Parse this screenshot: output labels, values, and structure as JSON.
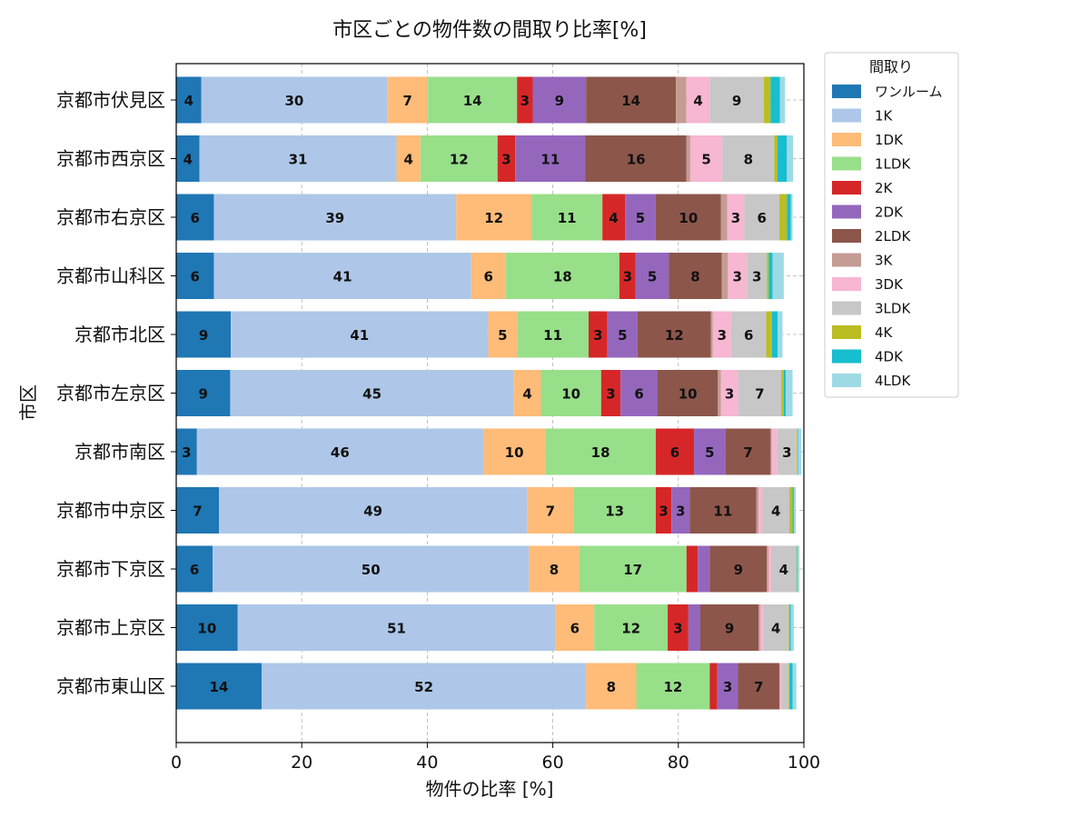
{
  "chart_data": {
    "type": "bar",
    "orientation": "horizontal",
    "stacked": true,
    "title": "市区ごとの物件数の間取り比率[%]",
    "xlabel": "物件の比率 [%]",
    "ylabel": "市区",
    "xlim": [
      0,
      100
    ],
    "xticks": [
      "0",
      "20",
      "40",
      "60",
      "80",
      "100"
    ],
    "grid": true,
    "legend": {
      "title": "間取り",
      "placement": "outside-top-right"
    },
    "categories": [
      "京都市伏見区",
      "京都市西京区",
      "京都市右京区",
      "京都市山科区",
      "京都市北区",
      "京都市左京区",
      "京都市南区",
      "京都市中京区",
      "京都市下京区",
      "京都市上京区",
      "京都市東山区"
    ],
    "series": [
      {
        "name": "ワンルーム",
        "color": "#1f77b4",
        "values": [
          4,
          3.7,
          6,
          6,
          8.7,
          8.6,
          3.3,
          6.8,
          5.8,
          9.8,
          13.6
        ]
      },
      {
        "name": "1K",
        "color": "#aec7e8",
        "values": [
          29.6,
          31.4,
          38.6,
          41,
          41,
          45.2,
          45.6,
          49.1,
          50.4,
          50.6,
          51.7
        ]
      },
      {
        "name": "1DK",
        "color": "#ffbb78",
        "values": [
          6.5,
          3.8,
          12,
          5.5,
          4.6,
          4.3,
          9.9,
          7.4,
          8,
          6.2,
          8
        ]
      },
      {
        "name": "1LDK",
        "color": "#98df8a",
        "values": [
          14.2,
          12.3,
          11.3,
          18.1,
          11.4,
          9.6,
          17.6,
          13.1,
          17.1,
          11.7,
          11.7
        ]
      },
      {
        "name": "2K",
        "color": "#d62728",
        "values": [
          2.5,
          2.8,
          3.6,
          2.6,
          3,
          3.1,
          6.1,
          2.5,
          1.8,
          3.3,
          1.2
        ]
      },
      {
        "name": "2DK",
        "color": "#9467bd",
        "values": [
          8.5,
          11.2,
          4.9,
          5.3,
          4.8,
          5.9,
          5,
          2.9,
          1.9,
          1.9,
          3.3
        ]
      },
      {
        "name": "2LDK",
        "color": "#8c564b",
        "values": [
          14.3,
          16.1,
          10.4,
          8.4,
          11.7,
          9.6,
          7.2,
          10.6,
          9.1,
          9.3,
          6.6
        ]
      },
      {
        "name": "3K",
        "color": "#c49c94",
        "values": [
          1.7,
          0.6,
          1,
          1,
          0.3,
          0.5,
          0.2,
          0.4,
          0.3,
          0.3,
          0.1
        ]
      },
      {
        "name": "3DK",
        "color": "#f7b6d2",
        "values": [
          3.7,
          5.1,
          2.7,
          3,
          2.9,
          2.7,
          0.8,
          0.6,
          0.4,
          0.4,
          0.2
        ]
      },
      {
        "name": "3LDK",
        "color": "#c7c7c7",
        "values": [
          8.6,
          8.3,
          5.6,
          3.2,
          5.6,
          6.9,
          3.2,
          4.3,
          4,
          4.1,
          1.2
        ]
      },
      {
        "name": "4K",
        "color": "#bcbd22",
        "values": [
          1.1,
          0.5,
          1.2,
          0.3,
          0.9,
          0.4,
          0.1,
          0.5,
          0.1,
          0.1,
          0.1
        ]
      },
      {
        "name": "4DK",
        "color": "#17becf",
        "values": [
          1.5,
          1.5,
          0.6,
          0.6,
          0.9,
          0.3,
          0.1,
          0.2,
          0.1,
          0.2,
          0.5
        ]
      },
      {
        "name": "4LDK",
        "color": "#9edae5",
        "values": [
          0.8,
          1,
          0.3,
          1.8,
          0.8,
          1.1,
          0.5,
          0.3,
          0.3,
          0.5,
          0.6
        ]
      }
    ]
  }
}
